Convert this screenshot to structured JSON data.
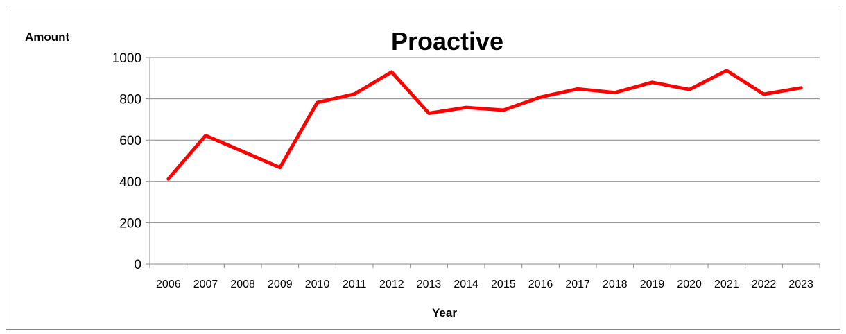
{
  "chart_data": {
    "type": "line",
    "title": "Proactive",
    "xlabel": "Year",
    "ylabel": "Amount",
    "categories": [
      "2006",
      "2007",
      "2008",
      "2009",
      "2010",
      "2011",
      "2012",
      "2013",
      "2014",
      "2015",
      "2016",
      "2017",
      "2018",
      "2019",
      "2020",
      "2021",
      "2022",
      "2023"
    ],
    "series": [
      {
        "values": [
          412,
          622,
          545,
          467,
          782,
          823,
          930,
          730,
          758,
          745,
          808,
          848,
          830,
          880,
          845,
          937,
          822,
          853
        ],
        "color": "#ff0000"
      }
    ],
    "ylim": [
      0,
      1000
    ],
    "yticks": [
      0,
      200,
      400,
      600,
      800,
      1000
    ],
    "grid": "horizontal",
    "legend": "none"
  }
}
